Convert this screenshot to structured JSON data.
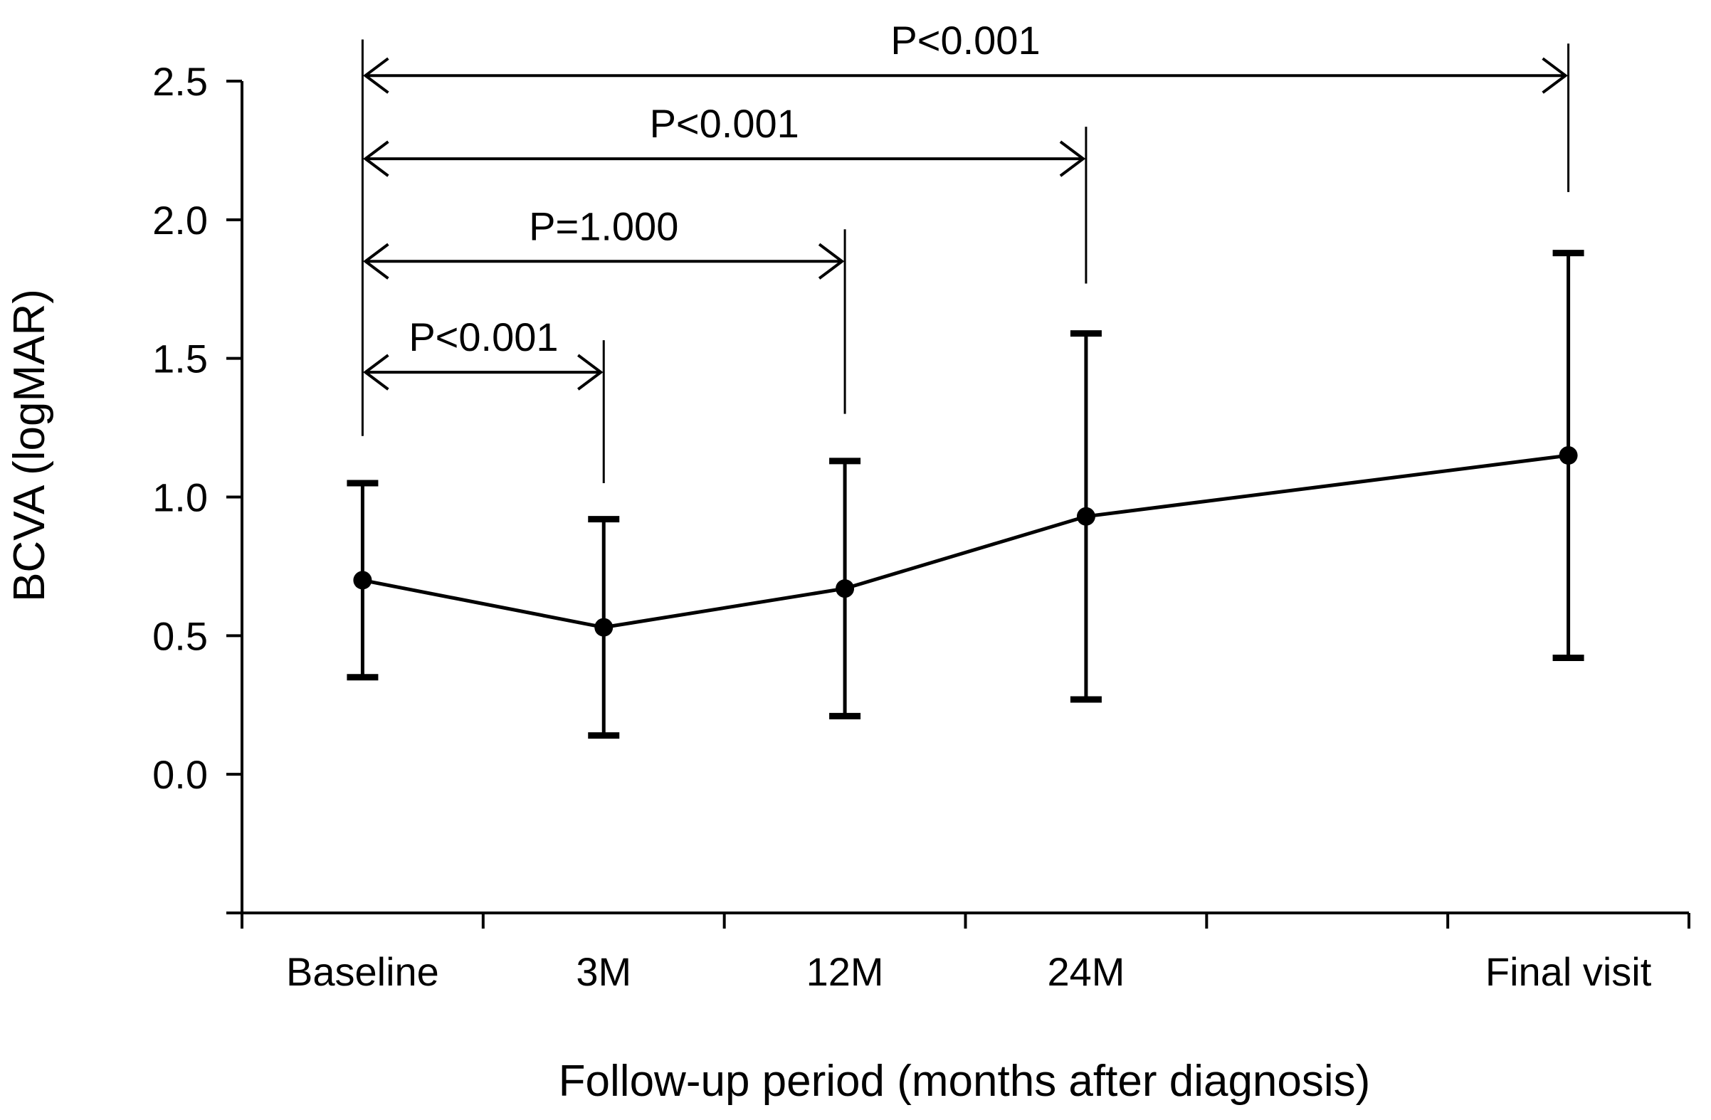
{
  "chart_data": {
    "type": "line",
    "title": "",
    "xlabel": "Follow-up period (months after diagnosis)",
    "ylabel": "BCVA (logMAR)",
    "ylim": [
      -0.5,
      2.5
    ],
    "yticks": [
      0.0,
      0.5,
      1.0,
      1.5,
      2.0,
      2.5
    ],
    "ytick_labels": [
      "0.0",
      "0.5",
      "1.0",
      "1.5",
      "2.0",
      "2.5"
    ],
    "grid": false,
    "categories": [
      "Baseline",
      "3M",
      "12M",
      "24M",
      "Final visit"
    ],
    "series": [
      {
        "name": "BCVA",
        "values": [
          0.7,
          0.53,
          0.67,
          0.93,
          1.15
        ],
        "err_low": [
          0.35,
          0.14,
          0.21,
          0.27,
          0.42
        ],
        "err_high": [
          1.05,
          0.92,
          1.13,
          1.59,
          1.88
        ]
      }
    ],
    "annotations": [
      {
        "from": "Baseline",
        "to": "3M",
        "label": "P<0.001"
      },
      {
        "from": "Baseline",
        "to": "12M",
        "label": "P=1.000"
      },
      {
        "from": "Baseline",
        "to": "24M",
        "label": "P<0.001"
      },
      {
        "from": "Baseline",
        "to": "Final visit",
        "label": "P<0.001"
      }
    ]
  }
}
